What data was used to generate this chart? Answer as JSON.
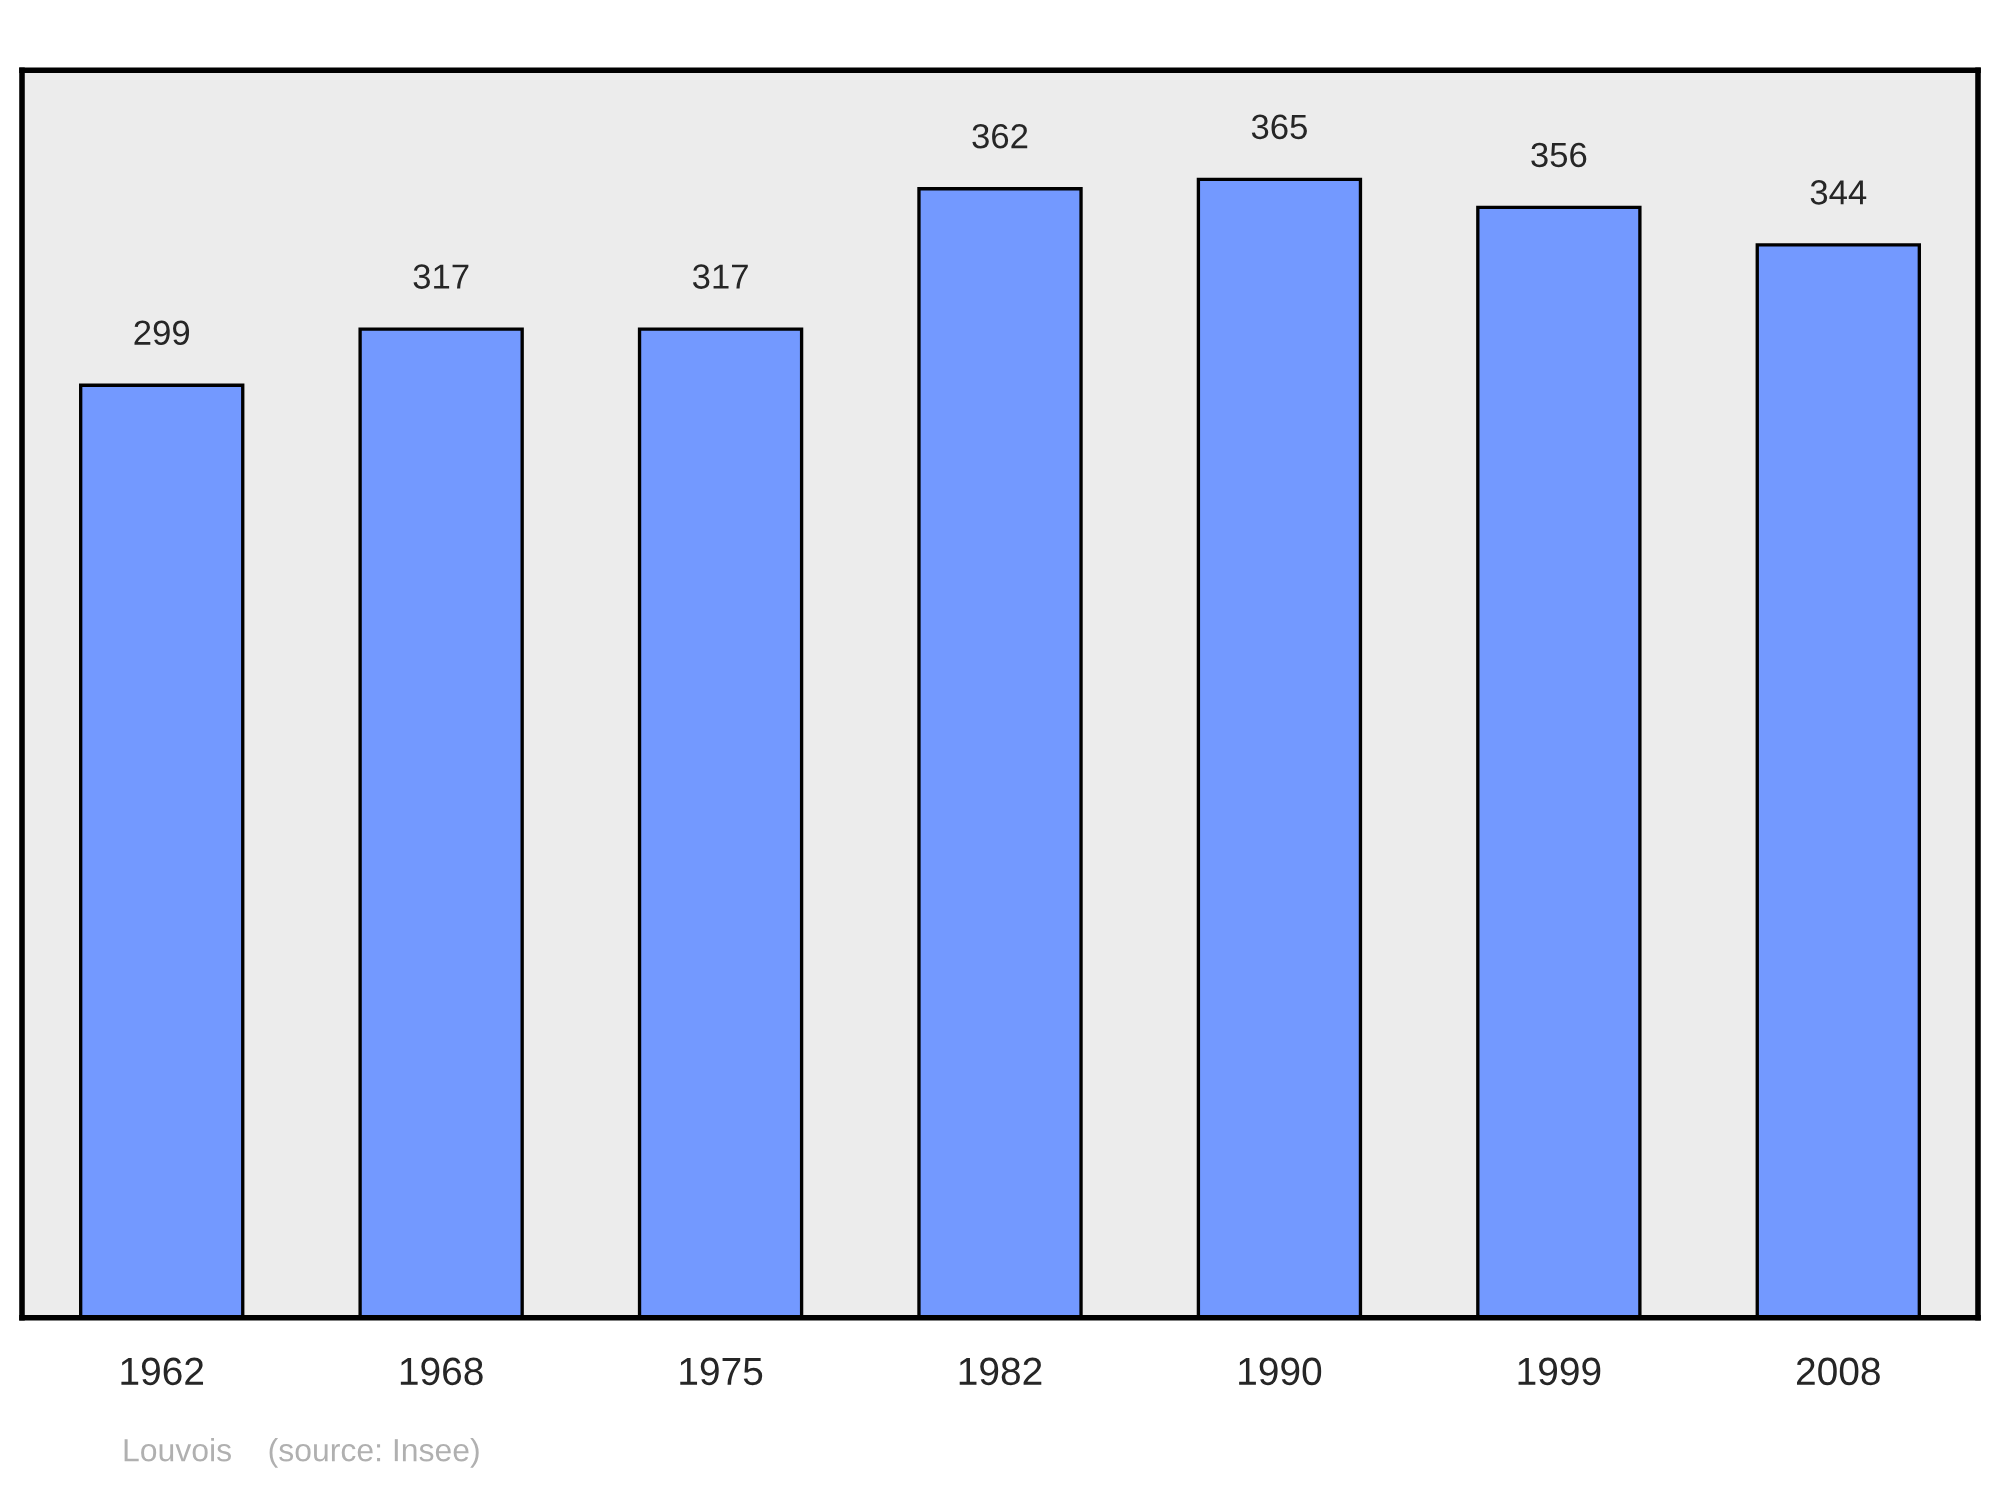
{
  "chart_data": {
    "type": "bar",
    "categories": [
      "1962",
      "1968",
      "1975",
      "1982",
      "1990",
      "1999",
      "2008"
    ],
    "values": [
      299,
      317,
      317,
      362,
      365,
      356,
      344
    ],
    "color": "#7399ff",
    "ylim": [
      0,
      400
    ],
    "data_labels": true,
    "tick_labels": "x",
    "grid": false,
    "annotations": [
      "Louvois    (source: Insee)"
    ]
  }
}
